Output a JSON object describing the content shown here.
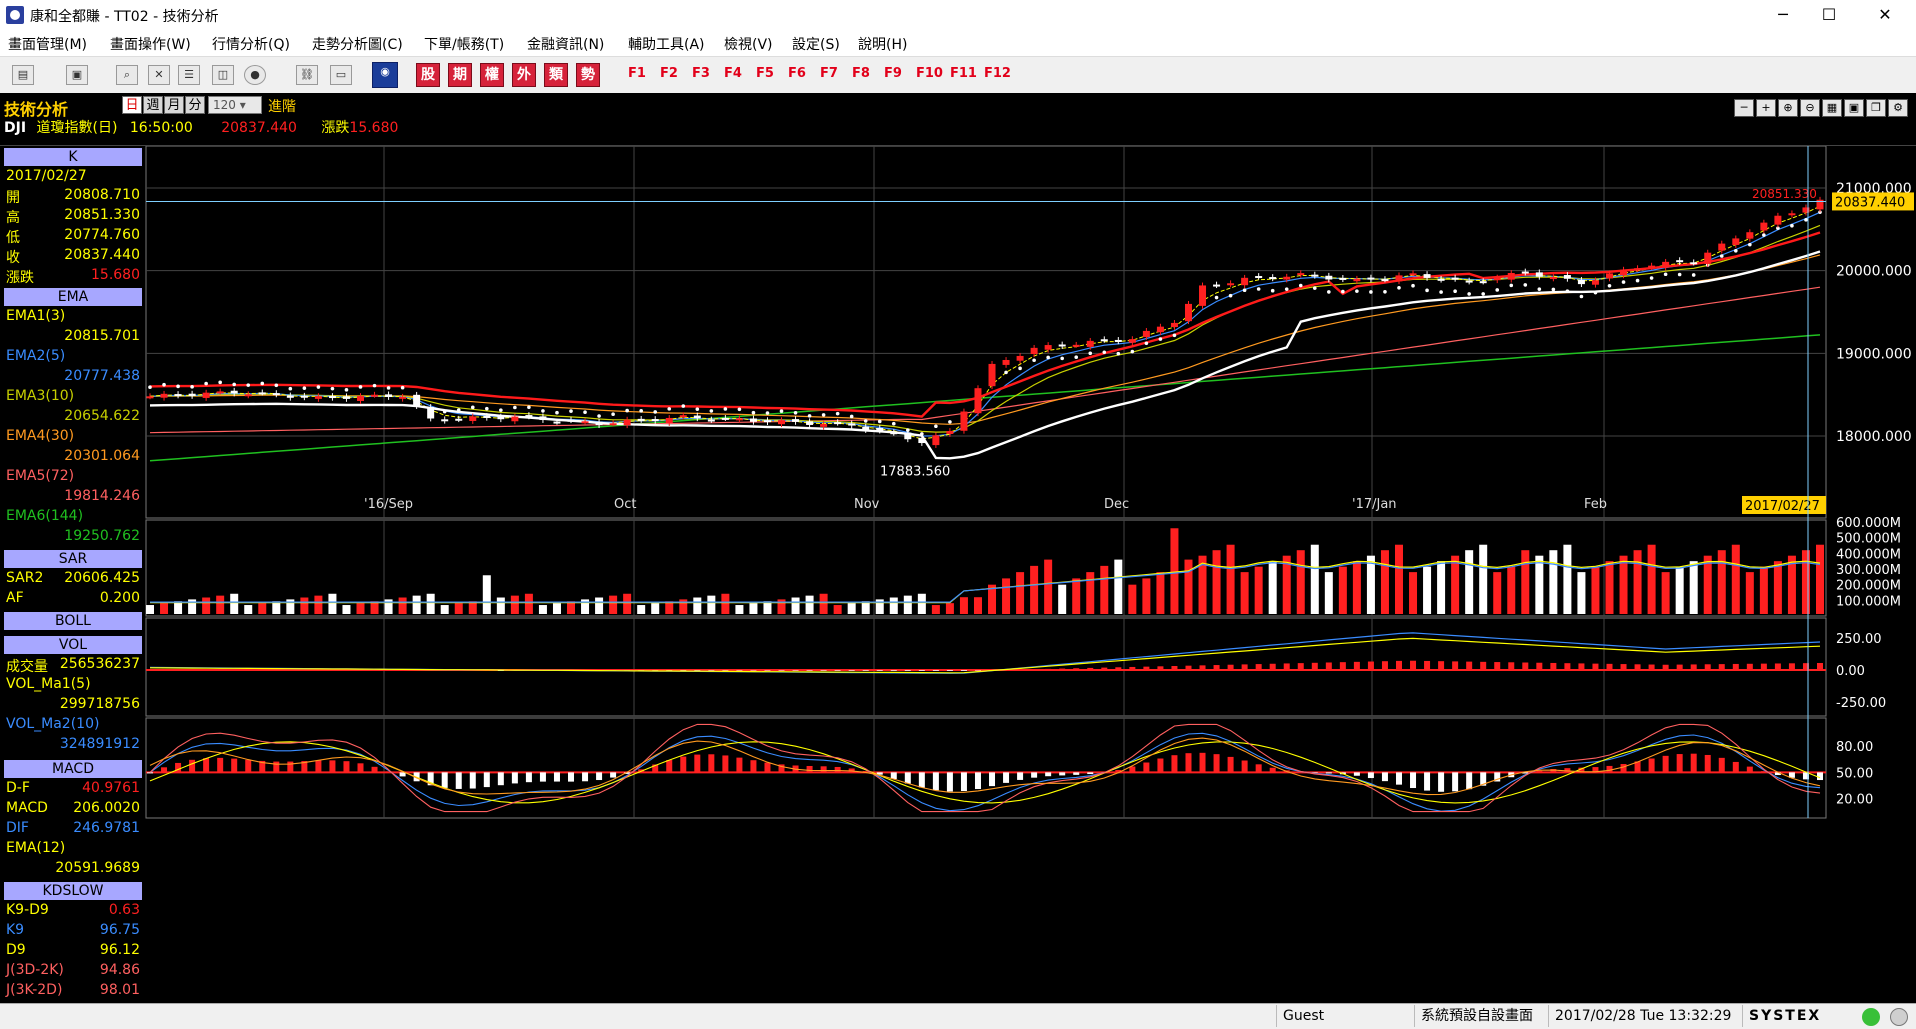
{
  "window": {
    "title": "康和全都賺 - TT02 - 技術分析",
    "minimize": "─",
    "maximize": "☐",
    "close": "✕"
  },
  "menu": [
    "畫面管理(M)",
    "畫面操作(W)",
    "行情分析(Q)",
    "走勢分析圖(C)",
    "下單/帳務(T)",
    "金融資訊(N)",
    "輔助工具(A)",
    "檢視(V)",
    "設定(S)",
    "說明(H)"
  ],
  "toolbar": {
    "cn_buttons": [
      "股",
      "期",
      "權",
      "外",
      "類",
      "勢"
    ],
    "fkeys": [
      "F1",
      "F2",
      "F3",
      "F4",
      "F5",
      "F6",
      "F7",
      "F8",
      "F9",
      "F10",
      "F11",
      "F12"
    ]
  },
  "module": {
    "title": "技術分析",
    "periods": [
      "日",
      "週",
      "月",
      "分"
    ],
    "count": "120",
    "advanced": "進階"
  },
  "stock": {
    "code": "DJI",
    "name": "道瓊指數(日)",
    "time": "16:50:00",
    "price": "20837.440",
    "change_label": "漲跌",
    "change": "15.680"
  },
  "panels": {
    "k": {
      "title": "K",
      "date": "2017/02/27",
      "rows": [
        {
          "k": "開",
          "v": "20808.710"
        },
        {
          "k": "高",
          "v": "20851.330"
        },
        {
          "k": "低",
          "v": "20774.760"
        },
        {
          "k": "收",
          "v": "20837.440"
        },
        {
          "k": "漲跌",
          "v": "15.680"
        }
      ]
    },
    "ema": {
      "title": "EMA",
      "rows": [
        {
          "k": "EMA1(3)",
          "v": "20815.701",
          "color": "#ffff00"
        },
        {
          "k": "EMA2(5)",
          "v": "20777.438",
          "color": "#3a8cff"
        },
        {
          "k": "EMA3(10)",
          "v": "20654.622",
          "color": "#c8d000"
        },
        {
          "k": "EMA4(30)",
          "v": "20301.064",
          "color": "#ff9a20"
        },
        {
          "k": "EMA5(72)",
          "v": "19814.246",
          "color": "#ff6060"
        },
        {
          "k": "EMA6(144)",
          "v": "19250.762",
          "color": "#20c020"
        }
      ]
    },
    "sar": {
      "title": "SAR",
      "rows": [
        {
          "k": "SAR2",
          "v": "20606.425"
        },
        {
          "k": "AF",
          "v": "0.200"
        }
      ]
    },
    "boll": {
      "title": "BOLL"
    },
    "vol": {
      "title": "VOL",
      "rows": [
        {
          "k": "成交量",
          "v": "256536237"
        },
        {
          "k": "VOL_Ma1(5)",
          "v": "299718756"
        },
        {
          "k": "VOL_Ma2(10)",
          "v": "324891912"
        }
      ]
    },
    "macd": {
      "title": "MACD",
      "rows": [
        {
          "k": "D-F",
          "v": "40.9761"
        },
        {
          "k": "MACD",
          "v": "206.0020"
        },
        {
          "k": "DIF",
          "v": "246.9781"
        },
        {
          "k": "EMA(12)",
          "v": ""
        },
        {
          "k": "",
          "v": "20591.9689"
        }
      ]
    },
    "kd": {
      "title": "KDSLOW",
      "rows": [
        {
          "k": "K9-D9",
          "v": "0.63"
        },
        {
          "k": "K9",
          "v": "96.75"
        },
        {
          "k": "D9",
          "v": "96.12"
        },
        {
          "k": "J(3D-2K)",
          "v": "94.86"
        },
        {
          "k": "J(3K-2D)",
          "v": "98.01"
        }
      ]
    }
  },
  "chart_data": {
    "type": "candlestick",
    "y_ticks": [
      "21000.000",
      "20000.000",
      "19000.000",
      "18000.000"
    ],
    "x_labels": [
      "'16/Sep",
      "Oct",
      "Nov",
      "Dec",
      "'17/Jan",
      "Feb"
    ],
    "cursor_date": "2017/02/27",
    "price_marker": "20837.440",
    "high_annotation": "20851.330",
    "low_annotation": "17883.560",
    "vol_ticks": [
      "600.000M",
      "500.000M",
      "400.000M",
      "300.000M",
      "200.000M",
      "100.000M"
    ],
    "macd_ticks": [
      "250.00",
      "0.00",
      "-250.00"
    ],
    "kd_ticks": [
      "80.00",
      "50.00",
      "20.00"
    ]
  },
  "status": {
    "user": "Guest",
    "layout": "系統預設自設畫面",
    "datetime": "2017/02/28 Tue 13:32:29",
    "brand": "SYSTEX"
  }
}
